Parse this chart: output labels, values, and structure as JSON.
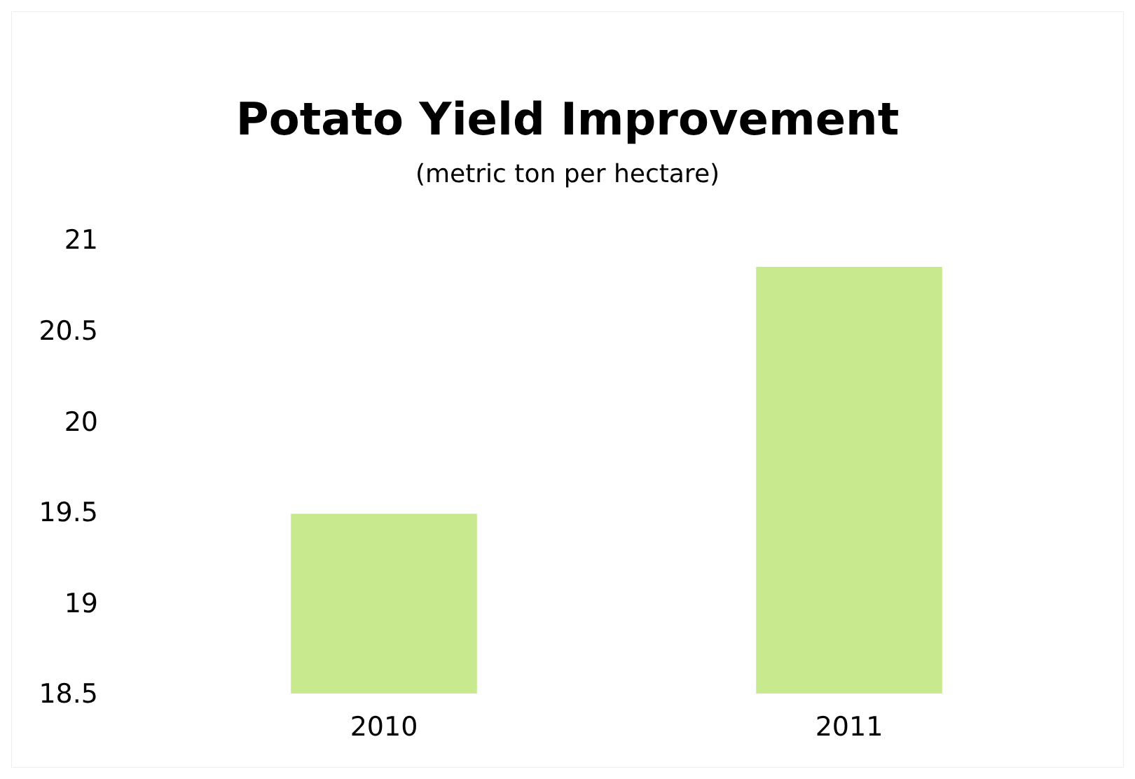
{
  "chart_data": {
    "type": "bar",
    "title": "Potato Yield Improvement",
    "subtitle": "(metric ton per hectare)",
    "categories": [
      "2010",
      "2011"
    ],
    "values": [
      19.49,
      20.85
    ],
    "color": "#c8e98e",
    "ylim": [
      18.5,
      21
    ],
    "yticks": [
      18.5,
      19,
      19.5,
      20,
      20.5,
      21
    ],
    "grid": false
  }
}
